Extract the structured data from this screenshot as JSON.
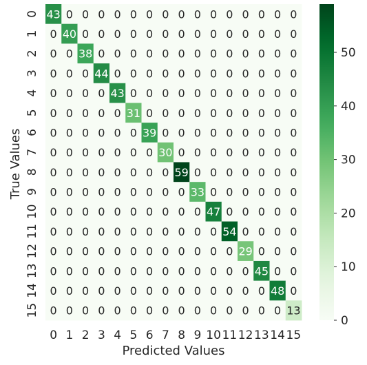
{
  "chart_data": {
    "type": "heatmap",
    "title": "",
    "xlabel": "Predicted Values",
    "ylabel": "True Values",
    "x_categories": [
      "0",
      "1",
      "2",
      "3",
      "4",
      "5",
      "6",
      "7",
      "8",
      "9",
      "10",
      "11",
      "12",
      "13",
      "14",
      "15"
    ],
    "y_categories": [
      "0",
      "1",
      "2",
      "3",
      "4",
      "5",
      "6",
      "7",
      "8",
      "9",
      "10",
      "11",
      "12",
      "13",
      "14",
      "15"
    ],
    "matrix": [
      [
        43,
        0,
        0,
        0,
        0,
        0,
        0,
        0,
        0,
        0,
        0,
        0,
        0,
        0,
        0,
        0
      ],
      [
        0,
        40,
        0,
        0,
        0,
        0,
        0,
        0,
        0,
        0,
        0,
        0,
        0,
        0,
        0,
        0
      ],
      [
        0,
        0,
        38,
        0,
        0,
        0,
        0,
        0,
        0,
        0,
        0,
        0,
        0,
        0,
        0,
        0
      ],
      [
        0,
        0,
        0,
        44,
        0,
        0,
        0,
        0,
        0,
        0,
        0,
        0,
        0,
        0,
        0,
        0
      ],
      [
        0,
        0,
        0,
        0,
        43,
        0,
        0,
        0,
        0,
        0,
        0,
        0,
        0,
        0,
        0,
        0
      ],
      [
        0,
        0,
        0,
        0,
        0,
        31,
        0,
        0,
        0,
        0,
        0,
        0,
        0,
        0,
        0,
        0
      ],
      [
        0,
        0,
        0,
        0,
        0,
        0,
        39,
        0,
        0,
        0,
        0,
        0,
        0,
        0,
        0,
        0
      ],
      [
        0,
        0,
        0,
        0,
        0,
        0,
        0,
        30,
        0,
        0,
        0,
        0,
        0,
        0,
        0,
        0
      ],
      [
        0,
        0,
        0,
        0,
        0,
        0,
        0,
        0,
        59,
        0,
        0,
        0,
        0,
        0,
        0,
        0
      ],
      [
        0,
        0,
        0,
        0,
        0,
        0,
        0,
        0,
        0,
        33,
        0,
        0,
        0,
        0,
        0,
        0
      ],
      [
        0,
        0,
        0,
        0,
        0,
        0,
        0,
        0,
        0,
        0,
        47,
        0,
        0,
        0,
        0,
        0
      ],
      [
        0,
        0,
        0,
        0,
        0,
        0,
        0,
        0,
        0,
        0,
        0,
        54,
        0,
        0,
        0,
        0
      ],
      [
        0,
        0,
        0,
        0,
        0,
        0,
        0,
        0,
        0,
        0,
        0,
        0,
        29,
        0,
        0,
        0
      ],
      [
        0,
        0,
        0,
        0,
        0,
        0,
        0,
        0,
        0,
        0,
        0,
        0,
        0,
        45,
        0,
        0
      ],
      [
        0,
        0,
        0,
        0,
        0,
        0,
        0,
        0,
        0,
        0,
        0,
        0,
        0,
        0,
        48,
        0
      ],
      [
        0,
        0,
        0,
        0,
        0,
        0,
        0,
        0,
        0,
        0,
        0,
        0,
        0,
        0,
        0,
        13
      ]
    ],
    "colorbar": {
      "min": 0,
      "max": 59,
      "ticks": [
        0,
        10,
        20,
        30,
        40,
        50
      ]
    },
    "colormap": "Greens",
    "grid": false
  }
}
